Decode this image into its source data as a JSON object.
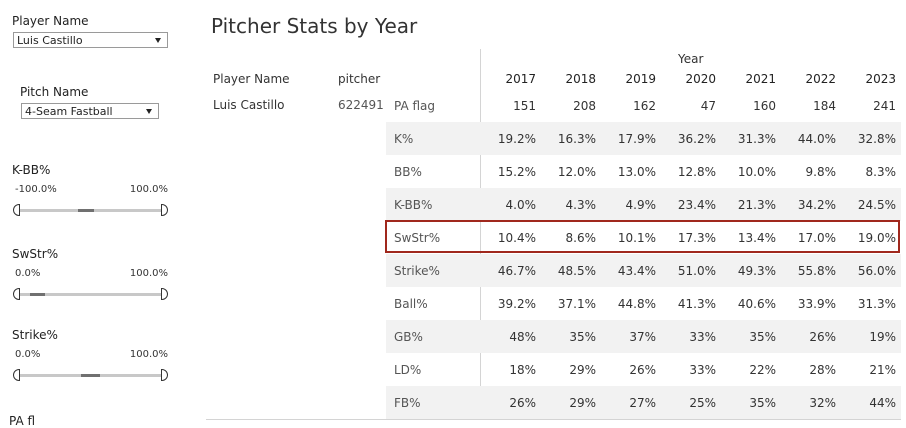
{
  "filters": {
    "player_name": {
      "label": "Player Name",
      "value": "Luis Castillo"
    },
    "pitch_name": {
      "label": "Pitch Name",
      "value": "4-Seam Fastball"
    },
    "sliders": [
      {
        "label": "K-BB%",
        "min_label": "-100.0%",
        "max_label": "100.0%",
        "range_start": 0.41,
        "range_end": 0.52
      },
      {
        "label": "SwStr%",
        "min_label": "0.0%",
        "max_label": "100.0%",
        "range_start": 0.09,
        "range_end": 0.19
      },
      {
        "label": "Strike%",
        "min_label": "0.0%",
        "max_label": "100.0%",
        "range_start": 0.43,
        "range_end": 0.56
      }
    ],
    "cut_label": "PA fl"
  },
  "table": {
    "title": "Pitcher Stats by Year",
    "col_player": "Player Name",
    "col_pitcher": "pitcher",
    "year_header": "Year",
    "years": [
      "2017",
      "2018",
      "2019",
      "2020",
      "2021",
      "2022",
      "2023"
    ],
    "player_name": "Luis Castillo",
    "pitcher_id": "622491",
    "rows": [
      {
        "label": "PA flag",
        "values": [
          "151",
          "208",
          "162",
          "47",
          "160",
          "184",
          "241"
        ]
      },
      {
        "label": "K%",
        "values": [
          "19.2%",
          "16.3%",
          "17.9%",
          "36.2%",
          "31.3%",
          "44.0%",
          "32.8%"
        ]
      },
      {
        "label": "BB%",
        "values": [
          "15.2%",
          "12.0%",
          "13.0%",
          "12.8%",
          "10.0%",
          "9.8%",
          "8.3%"
        ]
      },
      {
        "label": "K-BB%",
        "values": [
          "4.0%",
          "4.3%",
          "4.9%",
          "23.4%",
          "21.3%",
          "34.2%",
          "24.5%"
        ]
      },
      {
        "label": "SwStr%",
        "values": [
          "10.4%",
          "8.6%",
          "10.1%",
          "17.3%",
          "13.4%",
          "17.0%",
          "19.0%"
        ]
      },
      {
        "label": "Strike%",
        "values": [
          "46.7%",
          "48.5%",
          "43.4%",
          "51.0%",
          "49.3%",
          "55.8%",
          "56.0%"
        ]
      },
      {
        "label": "Ball%",
        "values": [
          "39.2%",
          "37.1%",
          "44.8%",
          "41.3%",
          "40.6%",
          "33.9%",
          "31.3%"
        ]
      },
      {
        "label": "GB%",
        "values": [
          "48%",
          "35%",
          "37%",
          "33%",
          "35%",
          "26%",
          "19%"
        ]
      },
      {
        "label": "LD%",
        "values": [
          "18%",
          "29%",
          "26%",
          "33%",
          "22%",
          "28%",
          "21%"
        ]
      },
      {
        "label": "FB%",
        "values": [
          "26%",
          "29%",
          "27%",
          "25%",
          "35%",
          "32%",
          "44%"
        ]
      }
    ],
    "highlighted_row": "SwStr%",
    "highlight_color": "#a0281d"
  }
}
